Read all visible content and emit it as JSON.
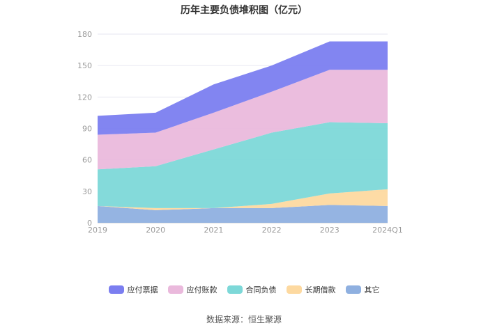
{
  "chart_data": {
    "type": "area",
    "stacked": true,
    "title": "历年主要负债堆积图（亿元）",
    "categories": [
      "2019",
      "2020",
      "2021",
      "2022",
      "2023",
      "2024Q1"
    ],
    "ylim": [
      0,
      180
    ],
    "yticks": [
      0,
      30,
      60,
      90,
      120,
      150,
      180
    ],
    "grid": true,
    "legend_position": "bottom",
    "series": [
      {
        "name": "其它",
        "color": "#8fb0e0",
        "values": [
          16,
          12,
          14,
          14,
          17,
          16
        ]
      },
      {
        "name": "长期借款",
        "color": "#fdd9a0",
        "values": [
          0,
          2,
          0,
          4,
          11,
          16
        ]
      },
      {
        "name": "合同负债",
        "color": "#7dd8d8",
        "values": [
          35,
          40,
          56,
          68,
          68,
          63
        ]
      },
      {
        "name": "应付账款",
        "color": "#eab9dc",
        "values": [
          33,
          32,
          35,
          39,
          50,
          51
        ]
      },
      {
        "name": "应付票据",
        "color": "#7b7ef0",
        "values": [
          18,
          19,
          27,
          25,
          27,
          27
        ]
      }
    ]
  },
  "legend_order": [
    "应付票据",
    "应付账款",
    "合同负债",
    "长期借款",
    "其它"
  ],
  "source": "数据来源：恒生聚源"
}
